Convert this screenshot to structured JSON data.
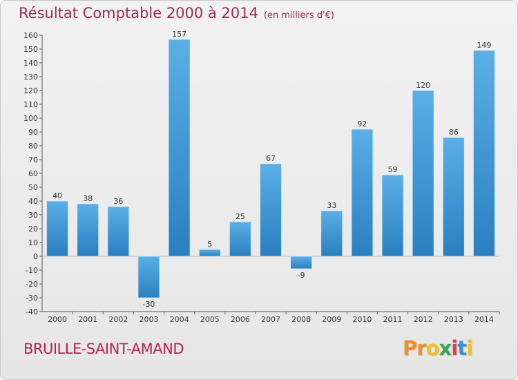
{
  "header": {
    "title": "Résultat Comptable 2000 à 2014",
    "unit": "(en milliers d'€)"
  },
  "footer": {
    "city": "BRUILLE-SAINT-AMAND",
    "logo_text": "Proxiti"
  },
  "colors": {
    "bar_light": "#5aafe6",
    "bar_dark": "#2a7fc0",
    "title": "#9b2a5a",
    "city": "#b3234f",
    "logo": [
      "#f28c28",
      "#f28c28",
      "#f2c021",
      "#33a852",
      "#e04040",
      "#3c8fd8",
      "#f2c021"
    ]
  },
  "chart_data": {
    "type": "bar",
    "title": "Résultat Comptable 2000 à 2014",
    "subtitle": "(en milliers d'€)",
    "categories": [
      "2000",
      "2001",
      "2002",
      "2003",
      "2004",
      "2005",
      "2006",
      "2007",
      "2008",
      "2009",
      "2010",
      "2011",
      "2012",
      "2013",
      "2014"
    ],
    "values": [
      40,
      38,
      36,
      -30,
      157,
      5,
      25,
      67,
      -9,
      33,
      92,
      59,
      120,
      86,
      149
    ],
    "ylim": [
      -40,
      160
    ],
    "yticks": [
      -40,
      -30,
      -20,
      -10,
      0,
      10,
      20,
      30,
      40,
      50,
      60,
      70,
      80,
      90,
      100,
      110,
      120,
      130,
      140,
      150,
      160
    ],
    "grid": false
  }
}
